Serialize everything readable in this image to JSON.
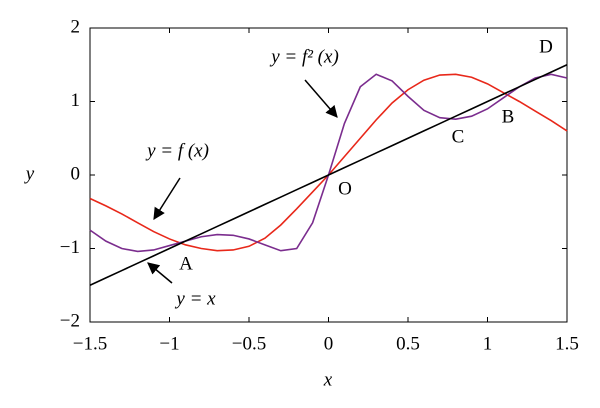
{
  "chart_data": {
    "type": "line",
    "xlabel": "x",
    "ylabel": "y",
    "x": [
      -1.5,
      -1.4,
      -1.3,
      -1.2,
      -1.1,
      -1.0,
      -0.9,
      -0.8,
      -0.7,
      -0.6,
      -0.5,
      -0.4,
      -0.3,
      -0.2,
      -0.1,
      0,
      0.1,
      0.2,
      0.3,
      0.4,
      0.5,
      0.6,
      0.7,
      0.8,
      0.9,
      1.0,
      1.1,
      1.2,
      1.3,
      1.4,
      1.5
    ],
    "series": [
      {
        "name": "y = f (x)",
        "color": "#e8281a",
        "values": [
          -0.32,
          -0.42,
          -0.53,
          -0.65,
          -0.77,
          -0.87,
          -0.95,
          -1.0,
          -1.03,
          -1.02,
          -0.97,
          -0.86,
          -0.68,
          -0.46,
          -0.23,
          0,
          0.25,
          0.5,
          0.75,
          0.98,
          1.16,
          1.29,
          1.36,
          1.37,
          1.33,
          1.24,
          1.12,
          1.0,
          0.87,
          0.74,
          0.6
        ]
      },
      {
        "name": "y = f² (x)",
        "color": "#7b2d8e",
        "values": [
          -0.75,
          -0.9,
          -1.0,
          -1.04,
          -1.02,
          -0.96,
          -0.9,
          -0.84,
          -0.81,
          -0.82,
          -0.87,
          -0.95,
          -1.03,
          -1.0,
          -0.65,
          0,
          0.7,
          1.2,
          1.37,
          1.28,
          1.07,
          0.88,
          0.78,
          0.76,
          0.8,
          0.9,
          1.05,
          1.2,
          1.32,
          1.37,
          1.32
        ]
      },
      {
        "name": "y = x",
        "color": "#000000",
        "values": [
          -1.5,
          -1.4,
          -1.3,
          -1.2,
          -1.1,
          -1.0,
          -0.9,
          -0.8,
          -0.7,
          -0.6,
          -0.5,
          -0.4,
          -0.3,
          -0.2,
          -0.1,
          0,
          0.1,
          0.2,
          0.3,
          0.4,
          0.5,
          0.6,
          0.7,
          0.8,
          0.9,
          1.0,
          1.1,
          1.2,
          1.3,
          1.4,
          1.5
        ]
      }
    ],
    "points": [
      "A",
      "B",
      "C",
      "D",
      "O"
    ],
    "xlim": [
      -1.5,
      1.5
    ],
    "xticks": [
      {
        "value": -1.5,
        "label": "−1.5"
      },
      {
        "value": -1,
        "label": "−1"
      },
      {
        "value": -0.5,
        "label": "−0.5"
      },
      0,
      0.5,
      1,
      1.5
    ],
    "ylim": [
      -2,
      2
    ],
    "yticks": [
      {
        "value": -2,
        "label": "−2"
      },
      {
        "value": -1,
        "label": "−1"
      },
      0,
      1,
      2
    ]
  }
}
